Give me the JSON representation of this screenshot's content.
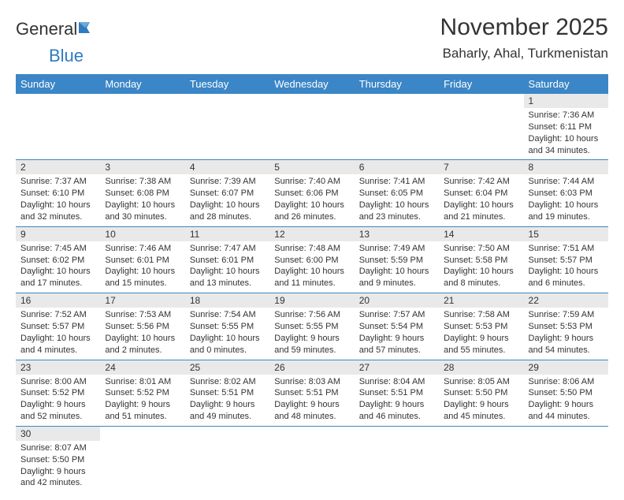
{
  "brand": {
    "part1": "General",
    "part2": "Blue"
  },
  "title": "November 2025",
  "location": "Baharly, Ahal, Turkmenistan",
  "colors": {
    "header_bg": "#3b86c6",
    "header_text": "#ffffff",
    "daynum_bg": "#e9e9e9",
    "cell_border": "#3b86c6",
    "logo_blue": "#2f7bbf",
    "page_bg": "#ffffff",
    "text": "#333333"
  },
  "fonts": {
    "title_size": 30,
    "location_size": 17,
    "header_size": 13,
    "daynum_size": 12,
    "cell_size": 11
  },
  "weekdays": [
    "Sunday",
    "Monday",
    "Tuesday",
    "Wednesday",
    "Thursday",
    "Friday",
    "Saturday"
  ],
  "weeks": [
    [
      null,
      null,
      null,
      null,
      null,
      null,
      {
        "d": "1",
        "sr": "Sunrise: 7:36 AM",
        "ss": "Sunset: 6:11 PM",
        "dl1": "Daylight: 10 hours",
        "dl2": "and 34 minutes."
      }
    ],
    [
      {
        "d": "2",
        "sr": "Sunrise: 7:37 AM",
        "ss": "Sunset: 6:10 PM",
        "dl1": "Daylight: 10 hours",
        "dl2": "and 32 minutes."
      },
      {
        "d": "3",
        "sr": "Sunrise: 7:38 AM",
        "ss": "Sunset: 6:08 PM",
        "dl1": "Daylight: 10 hours",
        "dl2": "and 30 minutes."
      },
      {
        "d": "4",
        "sr": "Sunrise: 7:39 AM",
        "ss": "Sunset: 6:07 PM",
        "dl1": "Daylight: 10 hours",
        "dl2": "and 28 minutes."
      },
      {
        "d": "5",
        "sr": "Sunrise: 7:40 AM",
        "ss": "Sunset: 6:06 PM",
        "dl1": "Daylight: 10 hours",
        "dl2": "and 26 minutes."
      },
      {
        "d": "6",
        "sr": "Sunrise: 7:41 AM",
        "ss": "Sunset: 6:05 PM",
        "dl1": "Daylight: 10 hours",
        "dl2": "and 23 minutes."
      },
      {
        "d": "7",
        "sr": "Sunrise: 7:42 AM",
        "ss": "Sunset: 6:04 PM",
        "dl1": "Daylight: 10 hours",
        "dl2": "and 21 minutes."
      },
      {
        "d": "8",
        "sr": "Sunrise: 7:44 AM",
        "ss": "Sunset: 6:03 PM",
        "dl1": "Daylight: 10 hours",
        "dl2": "and 19 minutes."
      }
    ],
    [
      {
        "d": "9",
        "sr": "Sunrise: 7:45 AM",
        "ss": "Sunset: 6:02 PM",
        "dl1": "Daylight: 10 hours",
        "dl2": "and 17 minutes."
      },
      {
        "d": "10",
        "sr": "Sunrise: 7:46 AM",
        "ss": "Sunset: 6:01 PM",
        "dl1": "Daylight: 10 hours",
        "dl2": "and 15 minutes."
      },
      {
        "d": "11",
        "sr": "Sunrise: 7:47 AM",
        "ss": "Sunset: 6:01 PM",
        "dl1": "Daylight: 10 hours",
        "dl2": "and 13 minutes."
      },
      {
        "d": "12",
        "sr": "Sunrise: 7:48 AM",
        "ss": "Sunset: 6:00 PM",
        "dl1": "Daylight: 10 hours",
        "dl2": "and 11 minutes."
      },
      {
        "d": "13",
        "sr": "Sunrise: 7:49 AM",
        "ss": "Sunset: 5:59 PM",
        "dl1": "Daylight: 10 hours",
        "dl2": "and 9 minutes."
      },
      {
        "d": "14",
        "sr": "Sunrise: 7:50 AM",
        "ss": "Sunset: 5:58 PM",
        "dl1": "Daylight: 10 hours",
        "dl2": "and 8 minutes."
      },
      {
        "d": "15",
        "sr": "Sunrise: 7:51 AM",
        "ss": "Sunset: 5:57 PM",
        "dl1": "Daylight: 10 hours",
        "dl2": "and 6 minutes."
      }
    ],
    [
      {
        "d": "16",
        "sr": "Sunrise: 7:52 AM",
        "ss": "Sunset: 5:57 PM",
        "dl1": "Daylight: 10 hours",
        "dl2": "and 4 minutes."
      },
      {
        "d": "17",
        "sr": "Sunrise: 7:53 AM",
        "ss": "Sunset: 5:56 PM",
        "dl1": "Daylight: 10 hours",
        "dl2": "and 2 minutes."
      },
      {
        "d": "18",
        "sr": "Sunrise: 7:54 AM",
        "ss": "Sunset: 5:55 PM",
        "dl1": "Daylight: 10 hours",
        "dl2": "and 0 minutes."
      },
      {
        "d": "19",
        "sr": "Sunrise: 7:56 AM",
        "ss": "Sunset: 5:55 PM",
        "dl1": "Daylight: 9 hours",
        "dl2": "and 59 minutes."
      },
      {
        "d": "20",
        "sr": "Sunrise: 7:57 AM",
        "ss": "Sunset: 5:54 PM",
        "dl1": "Daylight: 9 hours",
        "dl2": "and 57 minutes."
      },
      {
        "d": "21",
        "sr": "Sunrise: 7:58 AM",
        "ss": "Sunset: 5:53 PM",
        "dl1": "Daylight: 9 hours",
        "dl2": "and 55 minutes."
      },
      {
        "d": "22",
        "sr": "Sunrise: 7:59 AM",
        "ss": "Sunset: 5:53 PM",
        "dl1": "Daylight: 9 hours",
        "dl2": "and 54 minutes."
      }
    ],
    [
      {
        "d": "23",
        "sr": "Sunrise: 8:00 AM",
        "ss": "Sunset: 5:52 PM",
        "dl1": "Daylight: 9 hours",
        "dl2": "and 52 minutes."
      },
      {
        "d": "24",
        "sr": "Sunrise: 8:01 AM",
        "ss": "Sunset: 5:52 PM",
        "dl1": "Daylight: 9 hours",
        "dl2": "and 51 minutes."
      },
      {
        "d": "25",
        "sr": "Sunrise: 8:02 AM",
        "ss": "Sunset: 5:51 PM",
        "dl1": "Daylight: 9 hours",
        "dl2": "and 49 minutes."
      },
      {
        "d": "26",
        "sr": "Sunrise: 8:03 AM",
        "ss": "Sunset: 5:51 PM",
        "dl1": "Daylight: 9 hours",
        "dl2": "and 48 minutes."
      },
      {
        "d": "27",
        "sr": "Sunrise: 8:04 AM",
        "ss": "Sunset: 5:51 PM",
        "dl1": "Daylight: 9 hours",
        "dl2": "and 46 minutes."
      },
      {
        "d": "28",
        "sr": "Sunrise: 8:05 AM",
        "ss": "Sunset: 5:50 PM",
        "dl1": "Daylight: 9 hours",
        "dl2": "and 45 minutes."
      },
      {
        "d": "29",
        "sr": "Sunrise: 8:06 AM",
        "ss": "Sunset: 5:50 PM",
        "dl1": "Daylight: 9 hours",
        "dl2": "and 44 minutes."
      }
    ],
    [
      {
        "d": "30",
        "sr": "Sunrise: 8:07 AM",
        "ss": "Sunset: 5:50 PM",
        "dl1": "Daylight: 9 hours",
        "dl2": "and 42 minutes."
      },
      null,
      null,
      null,
      null,
      null,
      null
    ]
  ]
}
